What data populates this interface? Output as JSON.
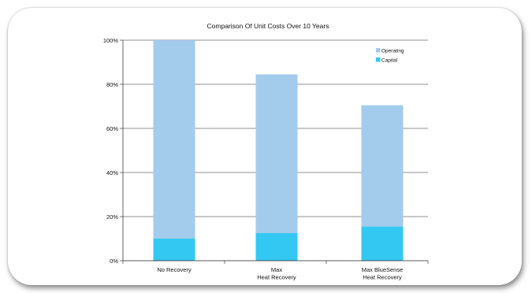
{
  "chart_data": {
    "type": "bar",
    "stacked": true,
    "title": "Comparison Of Unit Costs Over 10 Years",
    "xlabel": "",
    "ylabel": "",
    "ylim": [
      0,
      100
    ],
    "yticks": [
      "0%",
      "20%",
      "40%",
      "60%",
      "80%",
      "100%"
    ],
    "grid": true,
    "legend_position": "top-right",
    "categories": [
      [
        "No Recovery"
      ],
      [
        "Max",
        "Heat Recovery"
      ],
      [
        "Max BlueSense",
        "Heat Recovery"
      ]
    ],
    "series": [
      {
        "name": "Capital",
        "color": "#33c8f2",
        "values": [
          10,
          12.5,
          15.5
        ]
      },
      {
        "name": "Operating",
        "color": "#a3cbec",
        "values": [
          90,
          72,
          55
        ]
      }
    ],
    "legend_order": [
      "Operating",
      "Capital"
    ]
  }
}
